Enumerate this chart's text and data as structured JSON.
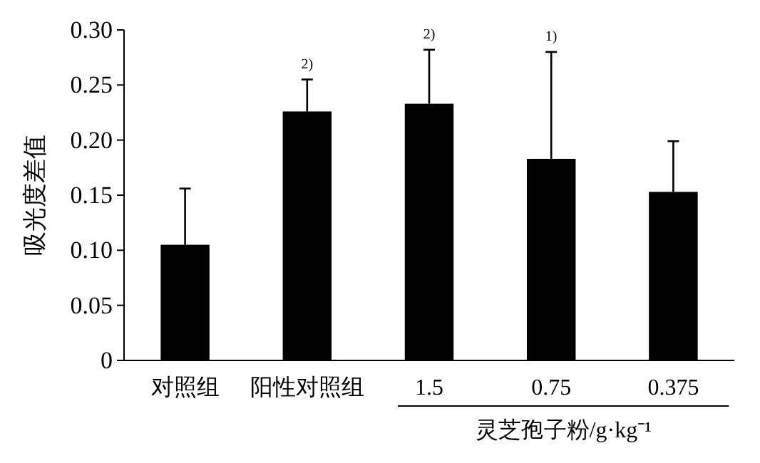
{
  "chart_data": {
    "type": "bar",
    "ylabel": "吸光度差值",
    "xlabel": "灵芝孢子粉/g·kg⁻¹",
    "categories": [
      "对照组",
      "阳性对照组",
      "1.5",
      "0.75",
      "0.375"
    ],
    "values": [
      0.105,
      0.226,
      0.233,
      0.183,
      0.153
    ],
    "errors": [
      [
        0.105,
        0.156
      ],
      [
        0.226,
        0.255
      ],
      [
        0.233,
        0.282
      ],
      [
        0.183,
        0.28
      ],
      [
        0.153,
        0.199
      ]
    ],
    "color": "#000000",
    "ylim": [
      0,
      0.3
    ],
    "yticks": [
      0,
      0.05,
      {
        "value": 0.1,
        "label": "0.10"
      },
      0.15,
      {
        "value": 0.2,
        "label": "0.20"
      },
      0.25,
      {
        "value": 0.3,
        "label": "0.30"
      }
    ],
    "grid": false,
    "annotations": [
      {
        "text": "2)",
        "x": "阳性对照组",
        "y": 0.255
      },
      {
        "text": "2)",
        "x": "1.5",
        "y": 0.282
      },
      {
        "text": "1)",
        "x": "0.75",
        "y": 0.28
      }
    ]
  }
}
